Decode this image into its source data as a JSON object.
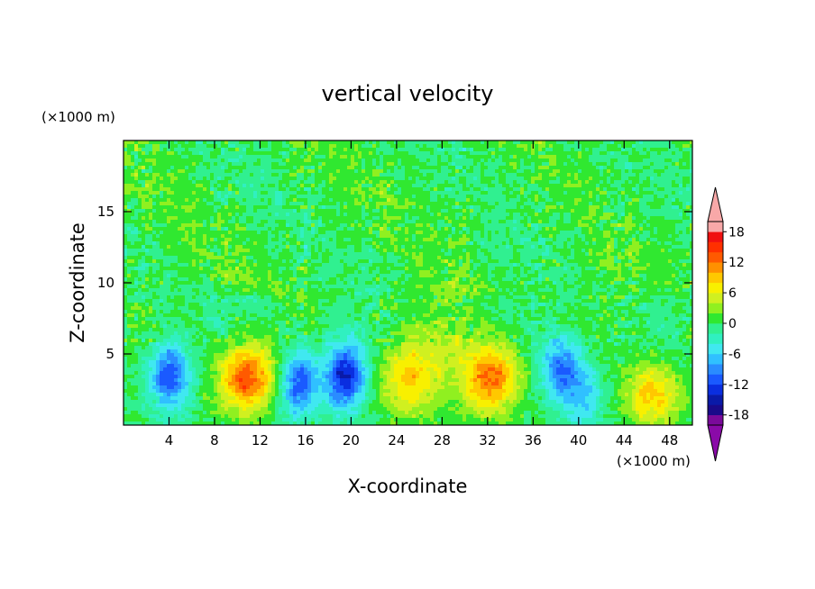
{
  "chart_data": {
    "type": "heatmap",
    "title": "vertical velocity",
    "xlabel": "X-coordinate",
    "ylabel": "Z-coordinate",
    "x_unit": "(×1000 m)",
    "y_unit": "(×1000 m)",
    "xlim": [
      0,
      50
    ],
    "ylim": [
      0,
      20
    ],
    "x_ticks": [
      4,
      8,
      12,
      16,
      20,
      24,
      28,
      32,
      36,
      40,
      44,
      48
    ],
    "y_ticks": [
      5,
      10,
      15
    ],
    "colorbar": {
      "levels": [
        -20,
        -18,
        -16,
        -14,
        -12,
        -10,
        -8,
        -6,
        -4,
        -2,
        0,
        2,
        4,
        6,
        8,
        10,
        12,
        14,
        16,
        18,
        20
      ],
      "labels": [
        18,
        12,
        6,
        0,
        -6,
        -12,
        -18
      ],
      "colors": [
        "#7a0a9a",
        "#1a0a8a",
        "#0a1aa8",
        "#0a2ee0",
        "#1a5aff",
        "#2a8cff",
        "#30c0ff",
        "#40e8f0",
        "#30f0c0",
        "#30f090",
        "#30e830",
        "#90f020",
        "#d0f020",
        "#f8f000",
        "#ffc800",
        "#ff9000",
        "#ff5a00",
        "#ff3000",
        "#f01010",
        "#f8a8a8"
      ],
      "over_color": "#f8a8a8",
      "under_color": "#8a0aa8"
    },
    "features": [
      {
        "kind": "updraft",
        "x": 10.8,
        "z": 3.3,
        "peak": 14
      },
      {
        "kind": "updraft",
        "x": 32.4,
        "z": 3.3,
        "peak": 12
      },
      {
        "kind": "updraft",
        "x": 46.6,
        "z": 2.2,
        "peak": 9
      },
      {
        "kind": "updraft",
        "x": 25.0,
        "z": 3.0,
        "peak": 7
      },
      {
        "kind": "downdraft",
        "x": 4.0,
        "z": 3.5,
        "peak": -12
      },
      {
        "kind": "downdraft",
        "x": 15.5,
        "z": 3.0,
        "peak": -12
      },
      {
        "kind": "downdraft",
        "x": 19.5,
        "z": 3.5,
        "peak": -14
      },
      {
        "kind": "downdraft",
        "x": 38.5,
        "z": 4.0,
        "peak": -10
      },
      {
        "kind": "downdraft",
        "x": 40.5,
        "z": 2.0,
        "peak": -6
      }
    ]
  }
}
